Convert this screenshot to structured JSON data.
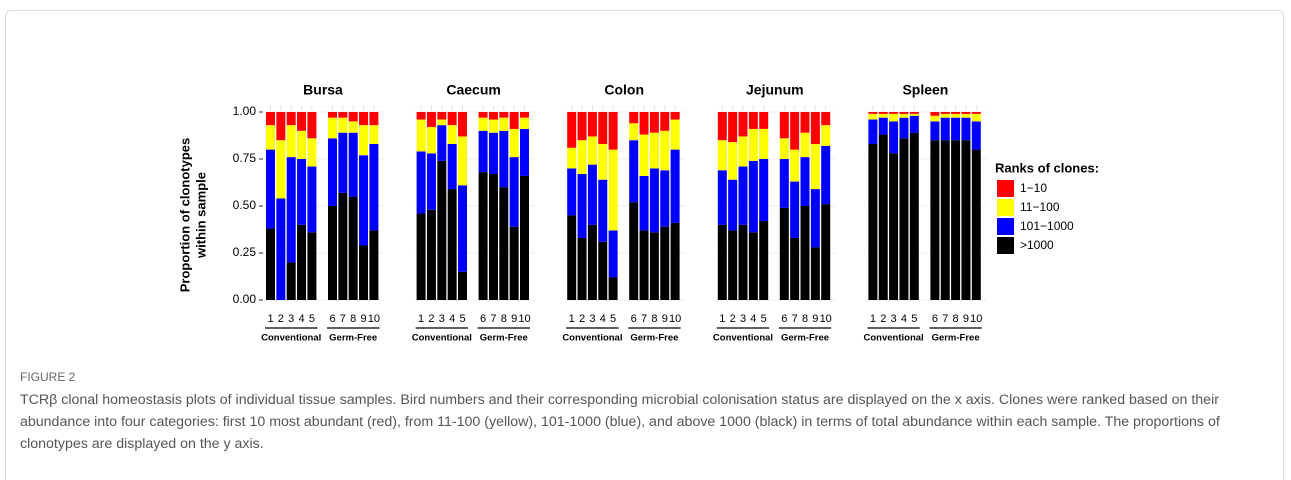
{
  "figure": {
    "label": "FIGURE 2",
    "caption": "TCRβ clonal homeostasis plots of individual tissue samples. Bird numbers and their corresponding microbial colonisation status are displayed on the x axis. Clones were ranked based on their abundance into four categories: first 10 most abundant (red), from 11-100 (yellow), 101-1000 (blue), and above 1000 (black) in terms of total abundance within each sample. The proportions of clonotypes are displayed on the y axis."
  },
  "y_axis": {
    "label": [
      "Proportion of clonotypes",
      "within sample"
    ],
    "ylim": [
      0,
      1
    ],
    "yticks": [
      {
        "value": 0,
        "label": "0.00"
      },
      {
        "value": 0.25,
        "label": "0.25"
      },
      {
        "value": 0.5,
        "label": "0.50"
      },
      {
        "value": 0.75,
        "label": "0.75"
      },
      {
        "value": 1,
        "label": "1.00"
      }
    ]
  },
  "legend": {
    "title": "Ranks of clones:",
    "items": [
      {
        "name": "1−10",
        "color": "#ff0000"
      },
      {
        "name": "11−100",
        "color": "#ffff00"
      },
      {
        "name": "101−1000",
        "color": "#0000ff"
      },
      {
        "name": ">1000",
        "color": "#000000"
      }
    ]
  },
  "chart_data": [
    {
      "type": "bar",
      "stacked": true,
      "title": "Bursa",
      "categories": [
        "1",
        "2",
        "3",
        "4",
        "5",
        "6",
        "7",
        "8",
        "9",
        "10"
      ],
      "groups": [
        "Conventional",
        "Germ-Free"
      ],
      "series": [
        {
          "values": [
            0.07,
            0.15,
            0.07,
            0.1,
            0.14,
            0.03,
            0.03,
            0.05,
            0.07,
            0.07
          ]
        },
        {
          "values": [
            0.13,
            0.31,
            0.17,
            0.15,
            0.15,
            0.11,
            0.08,
            0.06,
            0.16,
            0.1
          ]
        },
        {
          "values": [
            0.42,
            0.54,
            0.56,
            0.35,
            0.35,
            0.36,
            0.32,
            0.34,
            0.48,
            0.46
          ]
        },
        {
          "values": [
            0.38,
            0,
            0.2,
            0.4,
            0.36,
            0.5,
            0.57,
            0.55,
            0.29,
            0.37
          ]
        }
      ]
    },
    {
      "type": "bar",
      "stacked": true,
      "title": "Caecum",
      "categories": [
        "1",
        "2",
        "3",
        "4",
        "5",
        "6",
        "7",
        "8",
        "9",
        "10"
      ],
      "groups": [
        "Conventional",
        "Germ-Free"
      ],
      "series": [
        {
          "values": [
            0.04,
            0.08,
            0.04,
            0.07,
            0.13,
            0.03,
            0.04,
            0.03,
            0.09,
            0.03
          ]
        },
        {
          "values": [
            0.17,
            0.14,
            0.03,
            0.1,
            0.26,
            0.07,
            0.07,
            0.07,
            0.15,
            0.06
          ]
        },
        {
          "values": [
            0.33,
            0.3,
            0.19,
            0.24,
            0.46,
            0.22,
            0.22,
            0.3,
            0.37,
            0.25
          ]
        },
        {
          "values": [
            0.46,
            0.48,
            0.74,
            0.59,
            0.15,
            0.68,
            0.67,
            0.6,
            0.39,
            0.66
          ]
        }
      ]
    },
    {
      "type": "bar",
      "stacked": true,
      "title": "Colon",
      "categories": [
        "1",
        "2",
        "3",
        "4",
        "5",
        "6",
        "7",
        "8",
        "9",
        "10"
      ],
      "groups": [
        "Conventional",
        "Germ-Free"
      ],
      "series": [
        {
          "values": [
            0.19,
            0.15,
            0.13,
            0.17,
            0.2,
            0.06,
            0.12,
            0.11,
            0.1,
            0.04
          ]
        },
        {
          "values": [
            0.11,
            0.18,
            0.15,
            0.19,
            0.43,
            0.09,
            0.22,
            0.19,
            0.21,
            0.16
          ]
        },
        {
          "values": [
            0.25,
            0.34,
            0.32,
            0.33,
            0.25,
            0.33,
            0.29,
            0.34,
            0.3,
            0.39
          ]
        },
        {
          "values": [
            0.45,
            0.33,
            0.4,
            0.31,
            0.12,
            0.52,
            0.37,
            0.36,
            0.39,
            0.41
          ]
        }
      ]
    },
    {
      "type": "bar",
      "stacked": true,
      "title": "Jejunum",
      "categories": [
        "1",
        "2",
        "3",
        "4",
        "5",
        "6",
        "7",
        "8",
        "9",
        "10"
      ],
      "groups": [
        "Conventional",
        "Germ-Free"
      ],
      "series": [
        {
          "values": [
            0.15,
            0.16,
            0.13,
            0.09,
            0.09,
            0.14,
            0.2,
            0.11,
            0.17,
            0.07
          ]
        },
        {
          "values": [
            0.16,
            0.2,
            0.16,
            0.17,
            0.16,
            0.11,
            0.17,
            0.13,
            0.24,
            0.11
          ]
        },
        {
          "values": [
            0.29,
            0.27,
            0.31,
            0.38,
            0.33,
            0.26,
            0.3,
            0.26,
            0.31,
            0.31
          ]
        },
        {
          "values": [
            0.4,
            0.37,
            0.4,
            0.36,
            0.42,
            0.49,
            0.33,
            0.5,
            0.28,
            0.51
          ]
        }
      ]
    },
    {
      "type": "bar",
      "stacked": true,
      "title": "Spleen",
      "categories": [
        "1",
        "2",
        "3",
        "4",
        "5",
        "6",
        "7",
        "8",
        "9",
        "10"
      ],
      "groups": [
        "Conventional",
        "Germ-Free"
      ],
      "series": [
        {
          "values": [
            0.01,
            0.01,
            0.01,
            0.01,
            0.01,
            0.02,
            0.01,
            0.01,
            0.01,
            0.01
          ]
        },
        {
          "values": [
            0.03,
            0.02,
            0.04,
            0.02,
            0.01,
            0.03,
            0.02,
            0.02,
            0.02,
            0.04
          ]
        },
        {
          "values": [
            0.13,
            0.09,
            0.17,
            0.11,
            0.09,
            0.1,
            0.12,
            0.12,
            0.12,
            0.15
          ]
        },
        {
          "values": [
            0.83,
            0.88,
            0.78,
            0.86,
            0.89,
            0.85,
            0.85,
            0.85,
            0.85,
            0.8
          ]
        }
      ]
    }
  ]
}
